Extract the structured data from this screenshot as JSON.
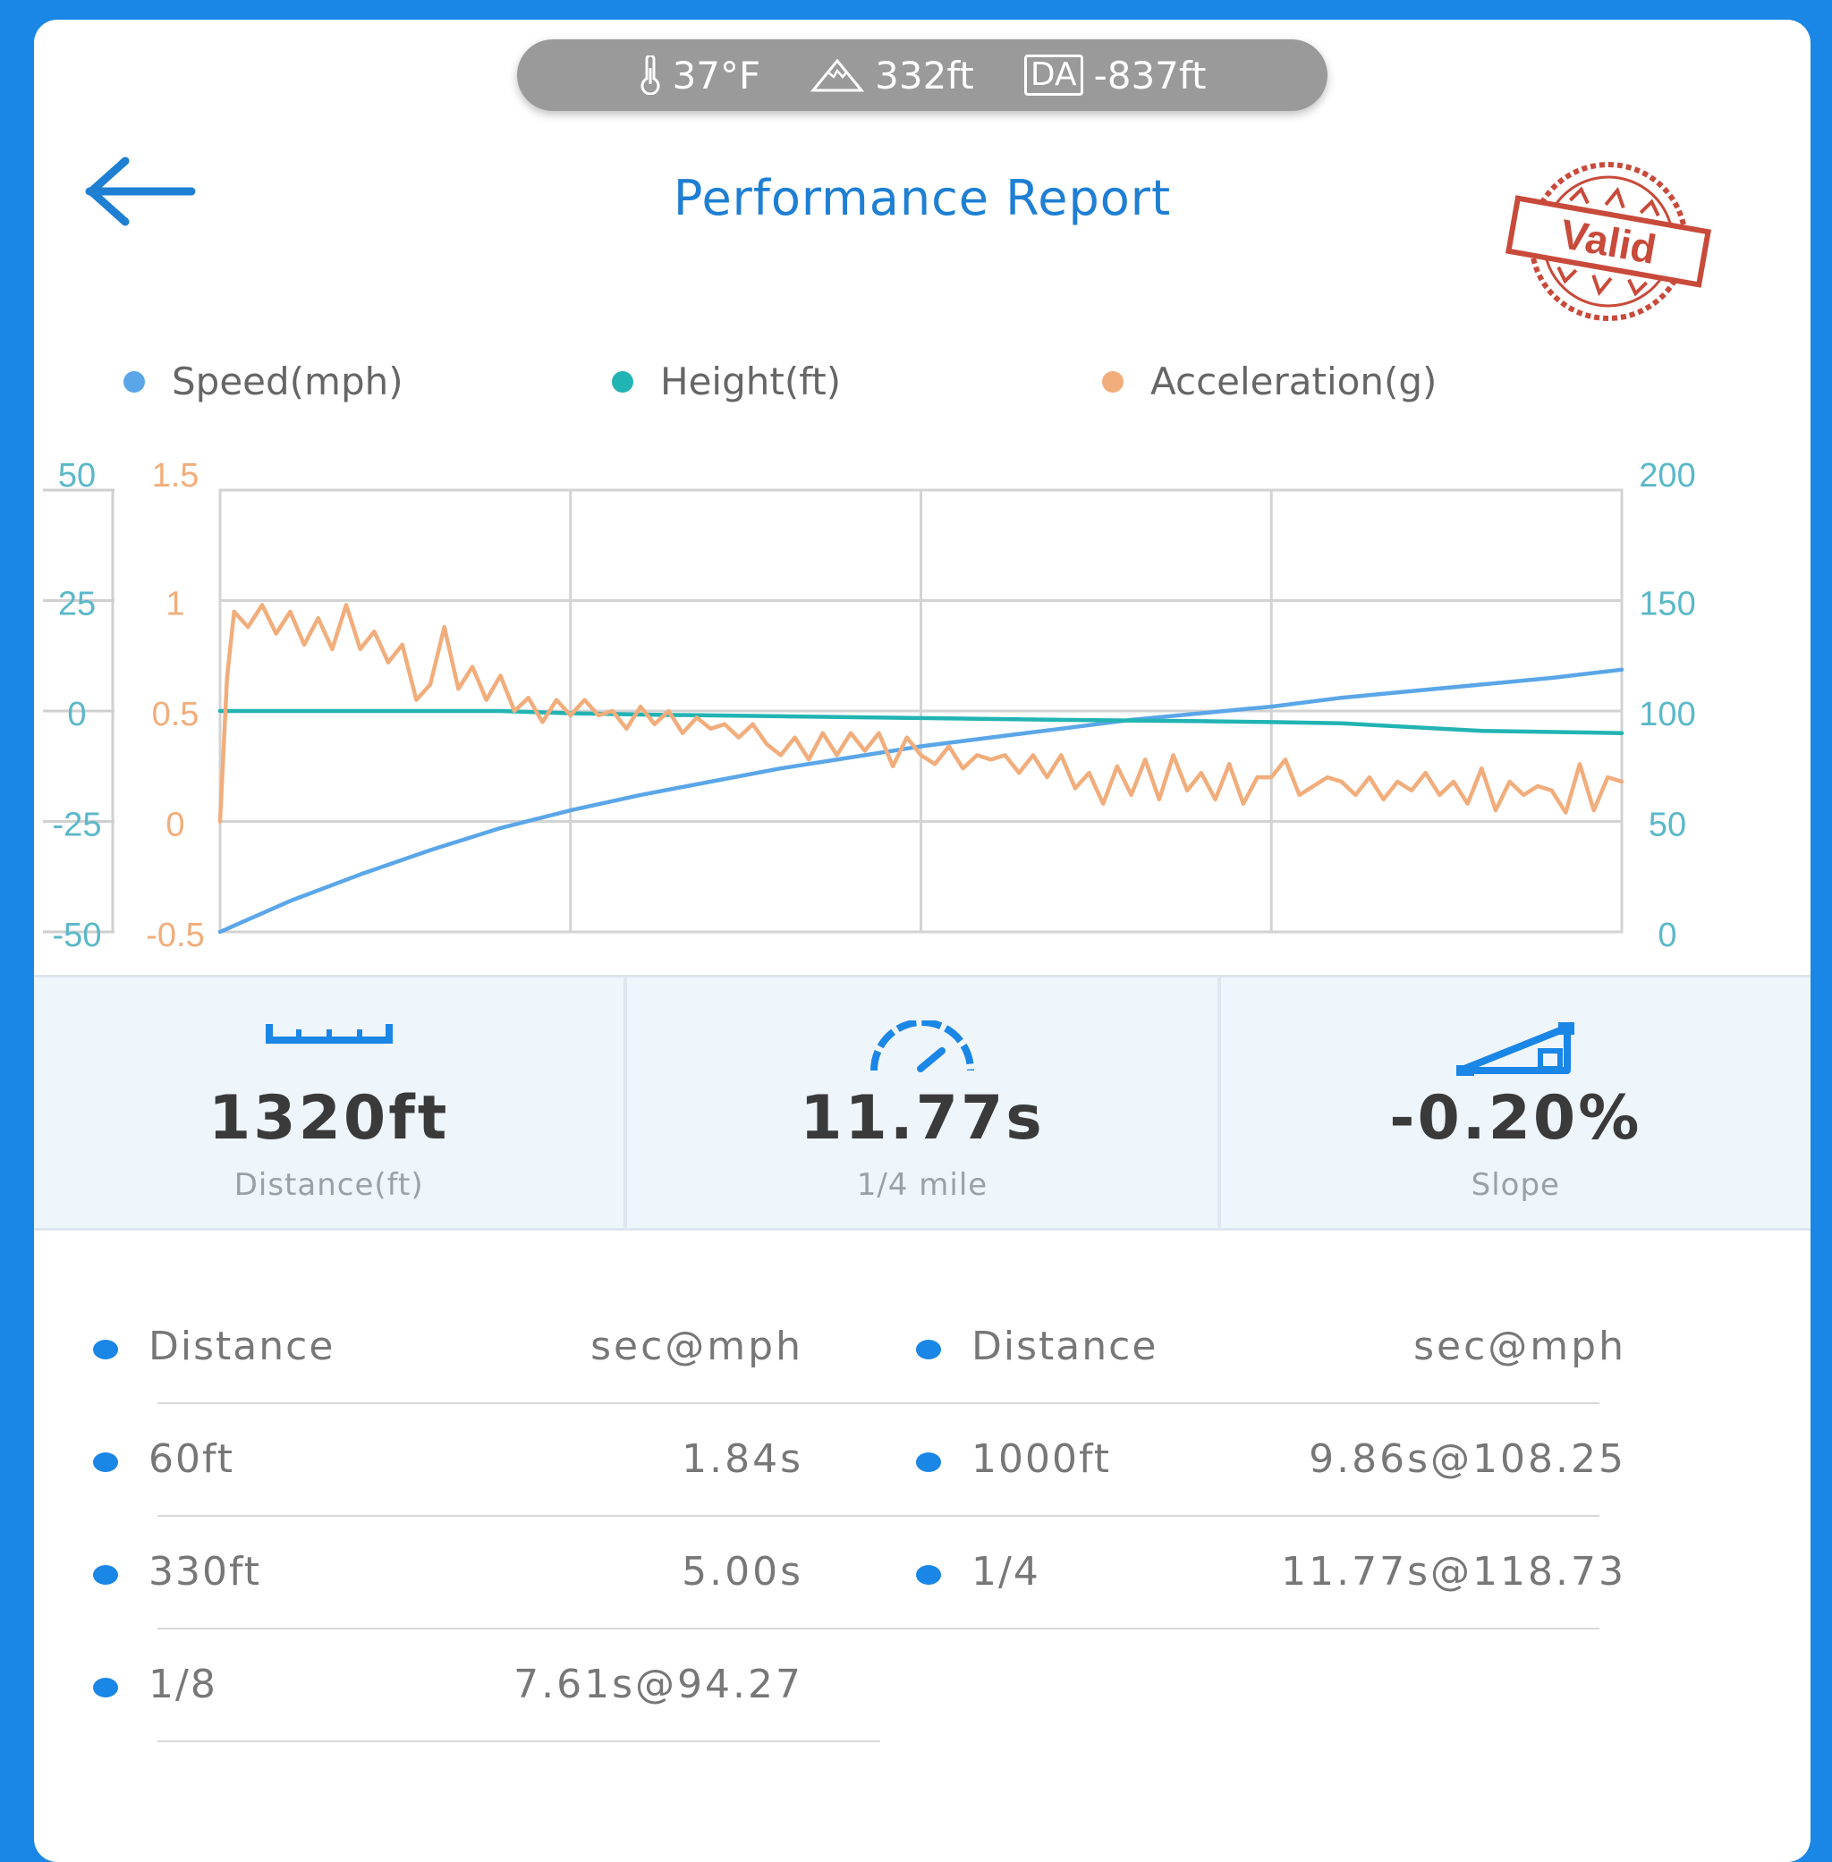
{
  "status_bar": {
    "temperature": "37°F",
    "altitude": "332ft",
    "da_badge": "DA",
    "density_altitude": "-837ft"
  },
  "header": {
    "title": "Performance Report",
    "stamp_text": "Valid"
  },
  "legend": [
    {
      "label": "Speed(mph)",
      "color": "#5aa6e8"
    },
    {
      "label": "Height(ft)",
      "color": "#22b3b3"
    },
    {
      "label": "Acceleration(g)",
      "color": "#f1ad7b"
    }
  ],
  "chart_data": {
    "type": "line",
    "x_gridlines": 4,
    "axes": {
      "height_left": {
        "ticks": [
          "50",
          "25",
          "0",
          "-25",
          "-50"
        ],
        "range": [
          -50,
          50
        ],
        "color": "#5bb8c8"
      },
      "accel_left": {
        "ticks": [
          "1.5",
          "1",
          "0.5",
          "0",
          "-0.5"
        ],
        "range": [
          -0.5,
          1.5
        ],
        "color": "#f1ad7b"
      },
      "speed_right": {
        "ticks": [
          "200",
          "150",
          "100",
          "50",
          "0"
        ],
        "range": [
          0,
          200
        ],
        "color": "#5bb8c8"
      }
    },
    "series": [
      {
        "name": "Speed(mph)",
        "axis": "speed_right",
        "color": "#5aa6e8",
        "x": [
          0,
          0.05,
          0.1,
          0.15,
          0.2,
          0.25,
          0.3,
          0.35,
          0.4,
          0.45,
          0.5,
          0.55,
          0.6,
          0.65,
          0.7,
          0.75,
          0.8,
          0.85,
          0.9,
          0.95,
          1.0
        ],
        "values": [
          0,
          14,
          26,
          37,
          47,
          55,
          62,
          68,
          74,
          79,
          84,
          88,
          92,
          96,
          99,
          102,
          106,
          109,
          112,
          115,
          118.7
        ]
      },
      {
        "name": "Height(ft)",
        "axis": "height_left",
        "color": "#22b3b3",
        "x": [
          0,
          0.1,
          0.2,
          0.25,
          0.3,
          0.4,
          0.5,
          0.6,
          0.7,
          0.75,
          0.8,
          0.9,
          1.0
        ],
        "values": [
          0,
          0,
          0,
          -0.5,
          -0.8,
          -1.2,
          -1.6,
          -2,
          -2.3,
          -2.5,
          -2.8,
          -4.5,
          -5
        ]
      },
      {
        "name": "Acceleration(g)",
        "axis": "accel_left",
        "color": "#f1ad7b",
        "x": [
          0,
          0.005,
          0.01,
          0.02,
          0.03,
          0.04,
          0.05,
          0.06,
          0.07,
          0.08,
          0.09,
          0.1,
          0.11,
          0.12,
          0.13,
          0.14,
          0.15,
          0.16,
          0.17,
          0.18,
          0.19,
          0.2,
          0.21,
          0.22,
          0.23,
          0.24,
          0.25,
          0.26,
          0.27,
          0.28,
          0.29,
          0.3,
          0.31,
          0.32,
          0.33,
          0.34,
          0.35,
          0.36,
          0.37,
          0.38,
          0.39,
          0.4,
          0.41,
          0.42,
          0.43,
          0.44,
          0.45,
          0.46,
          0.47,
          0.48,
          0.49,
          0.5,
          0.51,
          0.52,
          0.53,
          0.54,
          0.55,
          0.56,
          0.57,
          0.58,
          0.59,
          0.6,
          0.61,
          0.62,
          0.63,
          0.64,
          0.65,
          0.66,
          0.67,
          0.68,
          0.69,
          0.7,
          0.71,
          0.72,
          0.73,
          0.74,
          0.75,
          0.76,
          0.77,
          0.78,
          0.79,
          0.8,
          0.81,
          0.82,
          0.83,
          0.84,
          0.85,
          0.86,
          0.87,
          0.88,
          0.89,
          0.9,
          0.91,
          0.92,
          0.93,
          0.94,
          0.95,
          0.96,
          0.97,
          0.98,
          0.99,
          1.0
        ],
        "values": [
          0,
          0.65,
          0.95,
          0.88,
          0.98,
          0.85,
          0.95,
          0.8,
          0.92,
          0.78,
          0.98,
          0.78,
          0.86,
          0.72,
          0.8,
          0.55,
          0.62,
          0.88,
          0.6,
          0.7,
          0.55,
          0.66,
          0.5,
          0.56,
          0.45,
          0.55,
          0.48,
          0.55,
          0.48,
          0.5,
          0.42,
          0.52,
          0.44,
          0.5,
          0.4,
          0.47,
          0.42,
          0.44,
          0.38,
          0.44,
          0.35,
          0.3,
          0.38,
          0.28,
          0.4,
          0.3,
          0.4,
          0.32,
          0.4,
          0.25,
          0.38,
          0.3,
          0.26,
          0.34,
          0.24,
          0.3,
          0.28,
          0.3,
          0.22,
          0.3,
          0.2,
          0.3,
          0.15,
          0.22,
          0.08,
          0.25,
          0.12,
          0.28,
          0.1,
          0.3,
          0.14,
          0.22,
          0.1,
          0.26,
          0.08,
          0.2,
          0.2,
          0.28,
          0.12,
          0.16,
          0.2,
          0.18,
          0.12,
          0.2,
          0.1,
          0.18,
          0.14,
          0.22,
          0.12,
          0.18,
          0.08,
          0.24,
          0.05,
          0.18,
          0.12,
          0.16,
          0.14,
          0.04,
          0.26,
          0.05,
          0.2,
          0.18
        ]
      }
    ]
  },
  "summary": [
    {
      "icon": "ruler-icon",
      "value": "1320ft",
      "label": "Distance(ft)"
    },
    {
      "icon": "speedometer-icon",
      "value": "11.77s",
      "label": "1/4 mile"
    },
    {
      "icon": "slope-icon",
      "value": "-0.20%",
      "label": "Slope"
    }
  ],
  "splits": {
    "left": [
      {
        "key": "Distance",
        "value": "sec@mph"
      },
      {
        "key": "60ft",
        "value": "1.84s"
      },
      {
        "key": "330ft",
        "value": "5.00s"
      },
      {
        "key": "1/8",
        "value": "7.61s@94.27"
      }
    ],
    "right": [
      {
        "key": "Distance",
        "value": "sec@mph"
      },
      {
        "key": "1000ft",
        "value": "9.86s@108.25"
      },
      {
        "key": "1/4",
        "value": "11.77s@118.73"
      }
    ]
  }
}
